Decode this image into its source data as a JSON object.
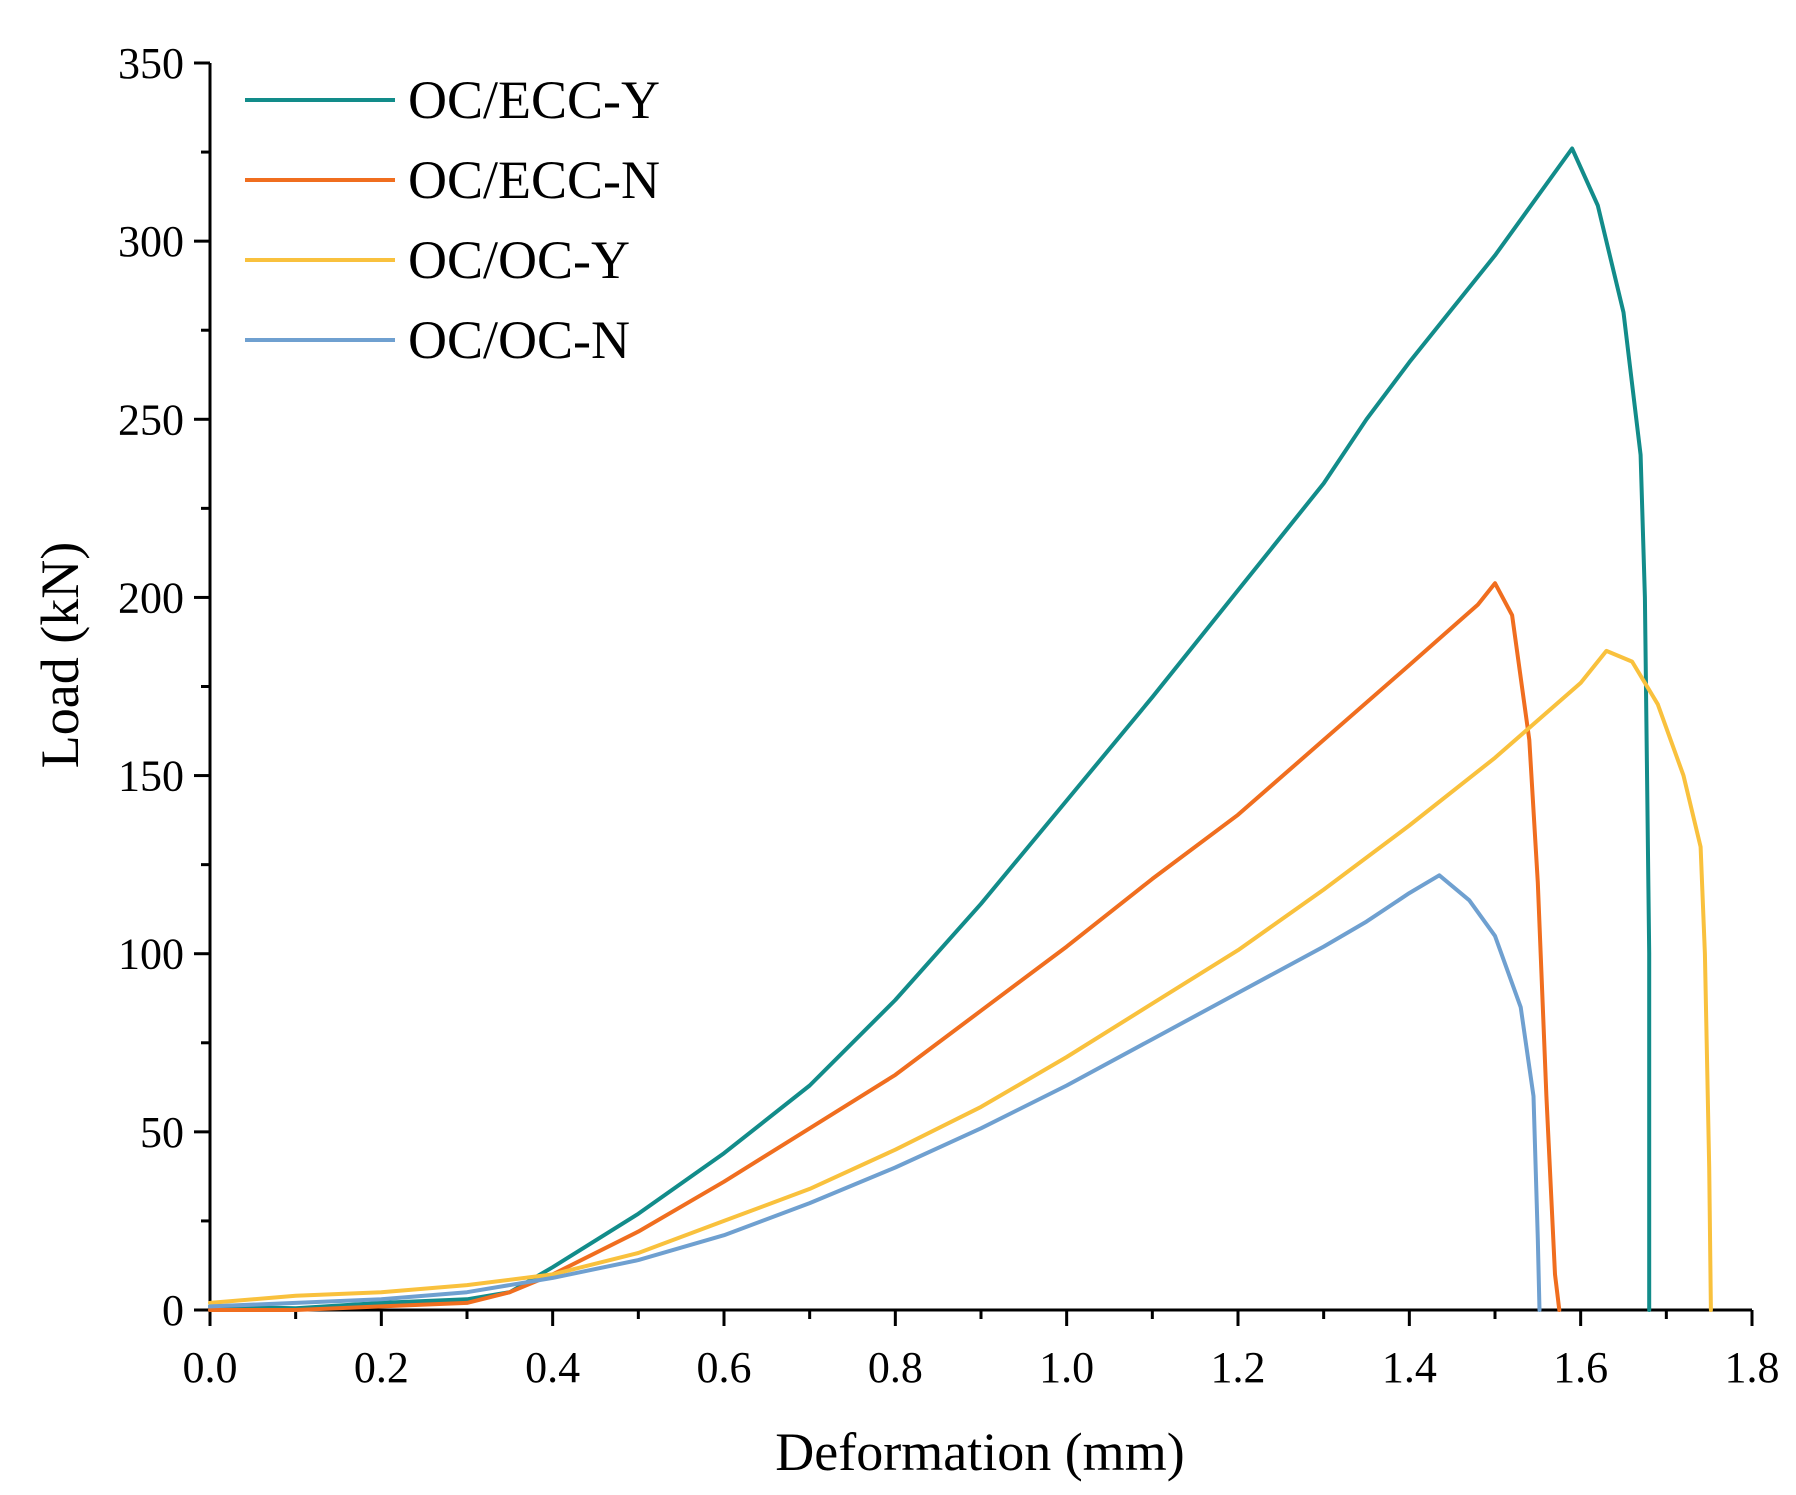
{
  "chart_data": {
    "type": "line",
    "title": "",
    "xlabel": "Deformation (mm)",
    "ylabel": "Load (kN)",
    "xlim": [
      0.0,
      1.8
    ],
    "ylim": [
      0,
      350
    ],
    "xticks": [
      0.0,
      0.2,
      0.4,
      0.6,
      0.8,
      1.0,
      1.2,
      1.4,
      1.6,
      1.8
    ],
    "xtick_labels": [
      "0.0",
      "0.2",
      "0.4",
      "0.6",
      "0.8",
      "1.0",
      "1.2",
      "1.4",
      "1.6",
      "1.8"
    ],
    "yticks": [
      0,
      50,
      100,
      150,
      200,
      250,
      300,
      350
    ],
    "ytick_labels": [
      "0",
      "50",
      "100",
      "150",
      "200",
      "250",
      "300",
      "350"
    ],
    "grid": false,
    "legend_position": "top-left",
    "series": [
      {
        "name": "OC/ECC-Y",
        "color": "#128c8a",
        "x": [
          0.0,
          0.1,
          0.2,
          0.3,
          0.35,
          0.4,
          0.5,
          0.6,
          0.7,
          0.8,
          0.9,
          1.0,
          1.1,
          1.2,
          1.3,
          1.35,
          1.4,
          1.5,
          1.59,
          1.62,
          1.65,
          1.67,
          1.675,
          1.68,
          1.68
        ],
        "y": [
          1,
          0.5,
          2,
          3,
          5,
          12,
          27,
          44,
          63,
          87,
          114,
          143,
          172,
          202,
          232,
          250,
          266,
          296,
          326,
          310,
          280,
          240,
          200,
          100,
          0
        ]
      },
      {
        "name": "OC/ECC-N",
        "color": "#f06e1f",
        "x": [
          0.0,
          0.1,
          0.2,
          0.3,
          0.35,
          0.4,
          0.5,
          0.6,
          0.7,
          0.8,
          0.9,
          1.0,
          1.1,
          1.2,
          1.3,
          1.4,
          1.48,
          1.5,
          1.52,
          1.54,
          1.55,
          1.56,
          1.57,
          1.575
        ],
        "y": [
          0,
          0,
          1,
          2,
          5,
          10,
          22,
          36,
          51,
          66,
          84,
          102,
          121,
          139,
          160,
          181,
          198,
          204,
          195,
          160,
          120,
          60,
          10,
          0
        ]
      },
      {
        "name": "OC/OC-Y",
        "color": "#f9c13d",
        "x": [
          0.0,
          0.1,
          0.2,
          0.3,
          0.4,
          0.5,
          0.6,
          0.7,
          0.8,
          0.9,
          1.0,
          1.1,
          1.2,
          1.3,
          1.4,
          1.5,
          1.6,
          1.63,
          1.66,
          1.69,
          1.72,
          1.74,
          1.745,
          1.75,
          1.752
        ],
        "y": [
          2,
          4,
          5,
          7,
          10,
          16,
          25,
          34,
          45,
          57,
          71,
          86,
          101,
          118,
          136,
          155,
          176,
          185,
          182,
          170,
          150,
          130,
          100,
          40,
          0
        ]
      },
      {
        "name": "OC/OC-N",
        "color": "#6fa0d0",
        "x": [
          0.0,
          0.1,
          0.2,
          0.3,
          0.4,
          0.5,
          0.6,
          0.7,
          0.8,
          0.9,
          1.0,
          1.1,
          1.2,
          1.3,
          1.35,
          1.4,
          1.435,
          1.47,
          1.5,
          1.53,
          1.545,
          1.55,
          1.552
        ],
        "y": [
          1,
          2,
          3,
          5,
          9,
          14,
          21,
          30,
          40,
          51,
          63,
          76,
          89,
          102,
          109,
          117,
          122,
          115,
          105,
          85,
          60,
          20,
          0
        ]
      }
    ]
  }
}
